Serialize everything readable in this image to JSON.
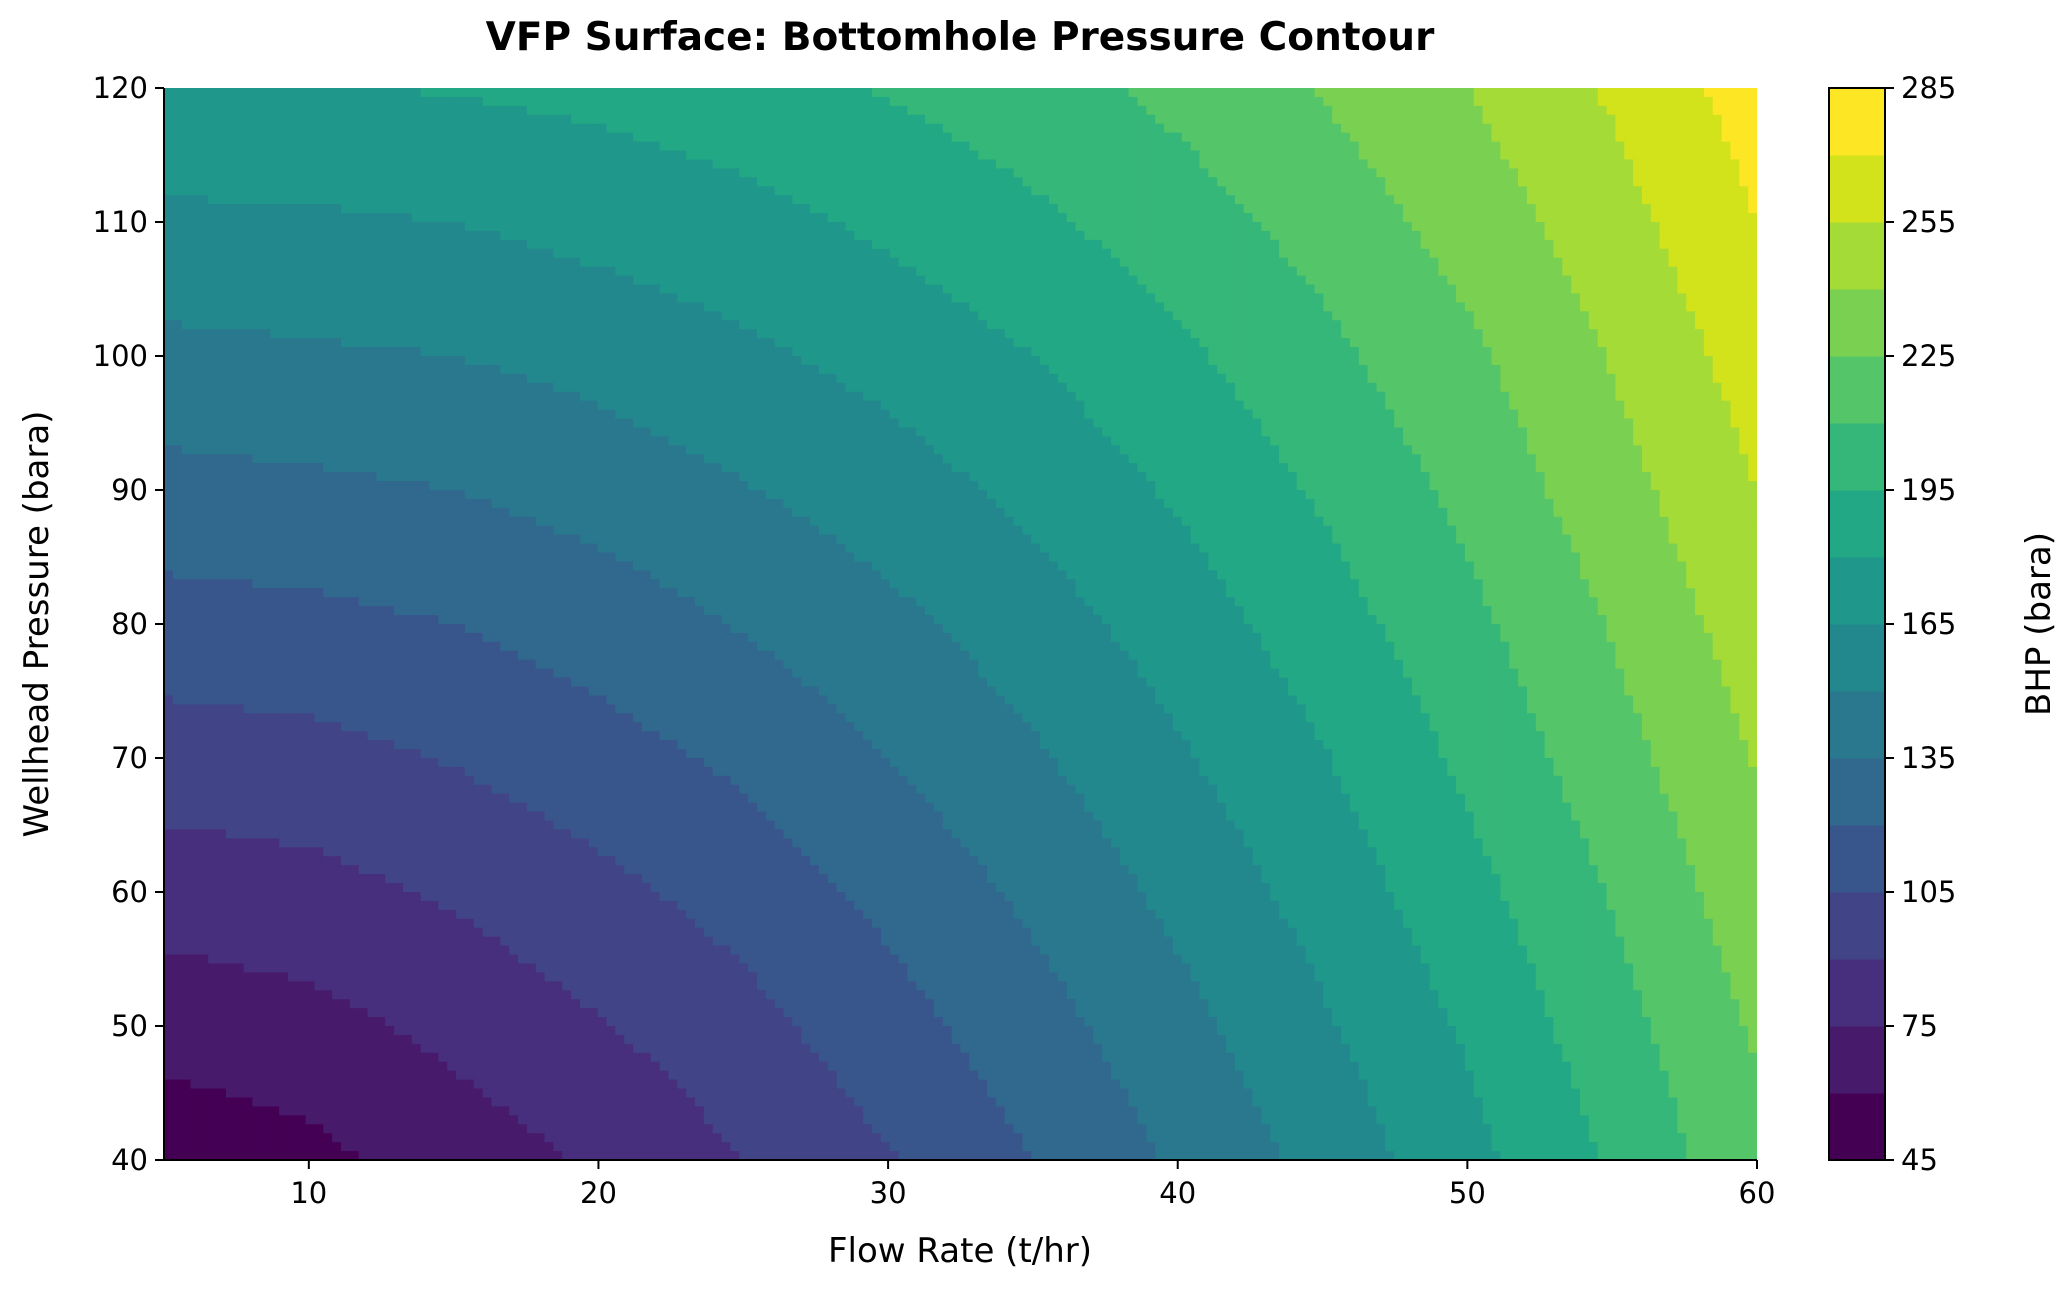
{
  "chart_data": {
    "type": "contour",
    "title": "VFP Surface: Bottomhole Pressure Contour",
    "xlabel": "Flow Rate (t/hr)",
    "ylabel": "Wellhead Pressure (bara)",
    "colorbar_label": "BHP (bara)",
    "xlim": [
      5,
      60
    ],
    "ylim": [
      40,
      120
    ],
    "x_ticks": [
      10,
      20,
      30,
      40,
      50,
      60
    ],
    "y_ticks": [
      40,
      50,
      60,
      70,
      80,
      90,
      100,
      110,
      120
    ],
    "levels": [
      45,
      60,
      75,
      90,
      105,
      120,
      135,
      150,
      165,
      180,
      195,
      210,
      225,
      240,
      255,
      270,
      285
    ],
    "colorbar_ticks": [
      45,
      75,
      105,
      135,
      165,
      195,
      225,
      255,
      285
    ],
    "colormap": "viridis",
    "level_colors": [
      "#440154",
      "#481A6C",
      "#472F7D",
      "#414487",
      "#39568C",
      "#31688E",
      "#2A788E",
      "#23888E",
      "#1F988B",
      "#22A884",
      "#35B779",
      "#54C568",
      "#7AD151",
      "#A5DB36",
      "#D2E21B",
      "#FDE725"
    ],
    "grid": false,
    "surface": {
      "x": [
        5,
        10,
        15,
        20,
        25,
        30,
        35,
        40,
        45,
        50,
        55,
        60
      ],
      "y": [
        40,
        50,
        60,
        70,
        80,
        90,
        100,
        110,
        120
      ],
      "z": [
        [
          50,
          56,
          67,
          77,
          90,
          104,
          120,
          137,
          155,
          175,
          197,
          221
        ],
        [
          66,
          70,
          79,
          89,
          100,
          114,
          129,
          145,
          163,
          182,
          204,
          227
        ],
        [
          82,
          85,
          92,
          101,
          111,
          124,
          138,
          154,
          171,
          190,
          211,
          234
        ],
        [
          98,
          100,
          106,
          114,
          123,
          135,
          148,
          163,
          179,
          198,
          219,
          241
        ],
        [
          114,
          116,
          120,
          127,
          136,
          146,
          158,
          172,
          188,
          206,
          226,
          248
        ],
        [
          130,
          132,
          135,
          141,
          149,
          158,
          169,
          182,
          197,
          214,
          234,
          255
        ],
        [
          146,
          148,
          150,
          155,
          162,
          170,
          180,
          192,
          206,
          222,
          241,
          262
        ],
        [
          162,
          163,
          165,
          170,
          175,
          183,
          192,
          203,
          216,
          231,
          249,
          270
        ],
        [
          178,
          179,
          181,
          184,
          189,
          196,
          204,
          214,
          226,
          240,
          257,
          277
        ]
      ]
    }
  }
}
